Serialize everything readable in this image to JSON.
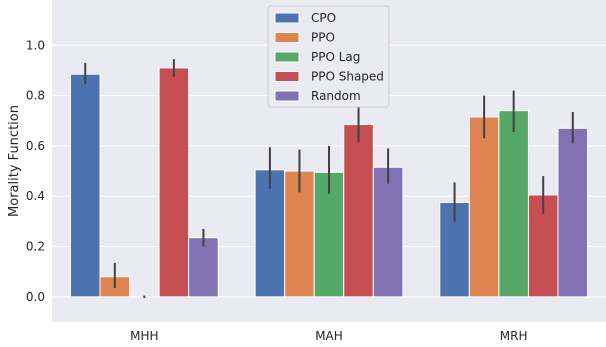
{
  "chart_data": {
    "type": "bar",
    "title": "",
    "xlabel": "",
    "ylabel": "Morality Function",
    "ylim": [
      -0.1,
      1.18
    ],
    "yticks": [
      0.0,
      0.2,
      0.4,
      0.6,
      0.8,
      1.0
    ],
    "ytick_labels": [
      "0.0",
      "0.2",
      "0.4",
      "0.6",
      "0.8",
      "1.0"
    ],
    "categories": [
      "MHH",
      "MAH",
      "MRH"
    ],
    "grid": true,
    "legend_position": "top-center",
    "background": "#eaeaf2",
    "series": [
      {
        "name": "CPO",
        "color": "#4c72b0",
        "values": [
          0.885,
          0.505,
          0.375
        ],
        "err_low": [
          0.845,
          0.43,
          0.3
        ],
        "err_high": [
          0.93,
          0.595,
          0.455
        ]
      },
      {
        "name": "PPO",
        "color": "#dd8452",
        "values": [
          0.08,
          0.5,
          0.715
        ],
        "err_low": [
          0.035,
          0.415,
          0.63
        ],
        "err_high": [
          0.135,
          0.585,
          0.8
        ]
      },
      {
        "name": "PPO Lag",
        "color": "#55a868",
        "values": [
          0.0,
          0.495,
          0.74
        ],
        "err_low": [
          -0.005,
          0.41,
          0.655
        ],
        "err_high": [
          0.005,
          0.6,
          0.82
        ]
      },
      {
        "name": "PPO Shaped",
        "color": "#c44e52",
        "values": [
          0.91,
          0.685,
          0.405
        ],
        "err_low": [
          0.875,
          0.615,
          0.33
        ],
        "err_high": [
          0.945,
          0.76,
          0.48
        ]
      },
      {
        "name": "Random",
        "color": "#8172b3",
        "values": [
          0.235,
          0.515,
          0.67
        ],
        "err_low": [
          0.2,
          0.45,
          0.61
        ],
        "err_high": [
          0.27,
          0.59,
          0.735
        ]
      }
    ]
  }
}
